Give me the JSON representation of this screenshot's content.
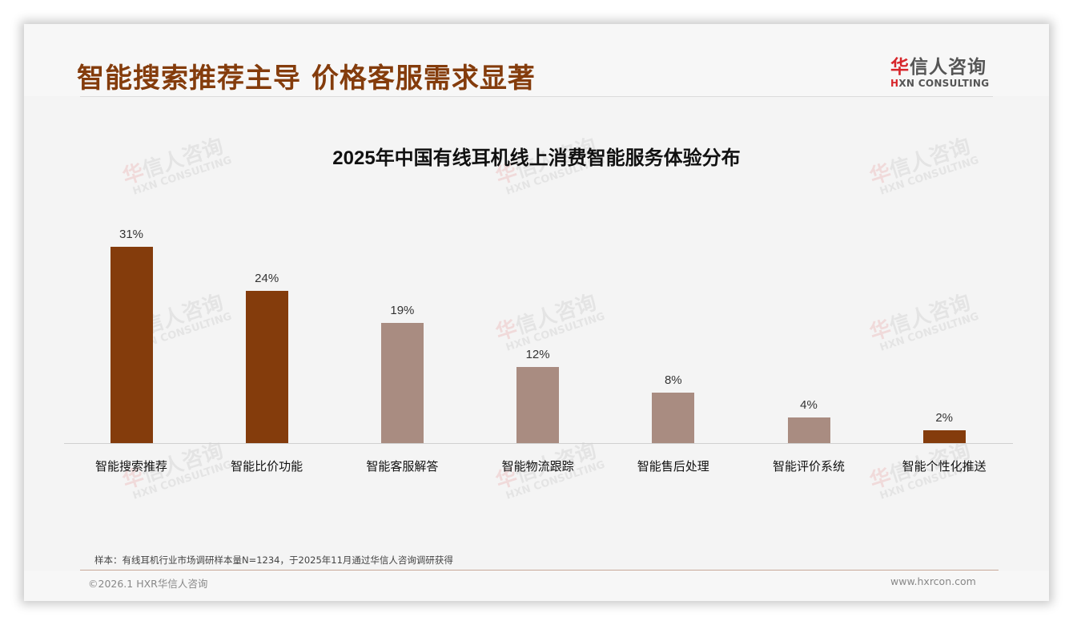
{
  "header": {
    "title": "智能搜索推荐主导 价格客服需求显著",
    "logo_cn_first": "华",
    "logo_cn_rest": "信人咨询",
    "logo_en_first": "H",
    "logo_en_rest": "XN CONSULTING"
  },
  "colors": {
    "title": "#843c0c",
    "bar_highlight": "#843c0c",
    "bar_muted": "#a98c81",
    "logo_red": "#d7262b"
  },
  "chart_data": {
    "type": "bar",
    "title": "2025年中国有线耳机线上消费智能服务体验分布",
    "categories": [
      "智能搜索推荐",
      "智能比价功能",
      "智能客服解答",
      "智能物流跟踪",
      "智能售后处理",
      "智能评价系统",
      "智能个性化推送"
    ],
    "values": [
      31,
      24,
      19,
      12,
      8,
      4,
      2
    ],
    "value_labels": [
      "31%",
      "24%",
      "19%",
      "12%",
      "8%",
      "4%",
      "2%"
    ],
    "highlighted": [
      true,
      true,
      false,
      false,
      false,
      false,
      true
    ],
    "unit": "%",
    "xlabel": "",
    "ylabel": "",
    "grid": false,
    "legend": false
  },
  "watermark": {
    "cn_first": "华",
    "cn_rest": "信人咨询",
    "en": "HXN CONSULTING"
  },
  "footer": {
    "note": "样本：有线耳机行业市场调研样本量N=1234，于2025年11月通过华信人咨询调研获得",
    "copyright": "©2026.1 HXR华信人咨询",
    "website": "www.hxrcon.com"
  }
}
